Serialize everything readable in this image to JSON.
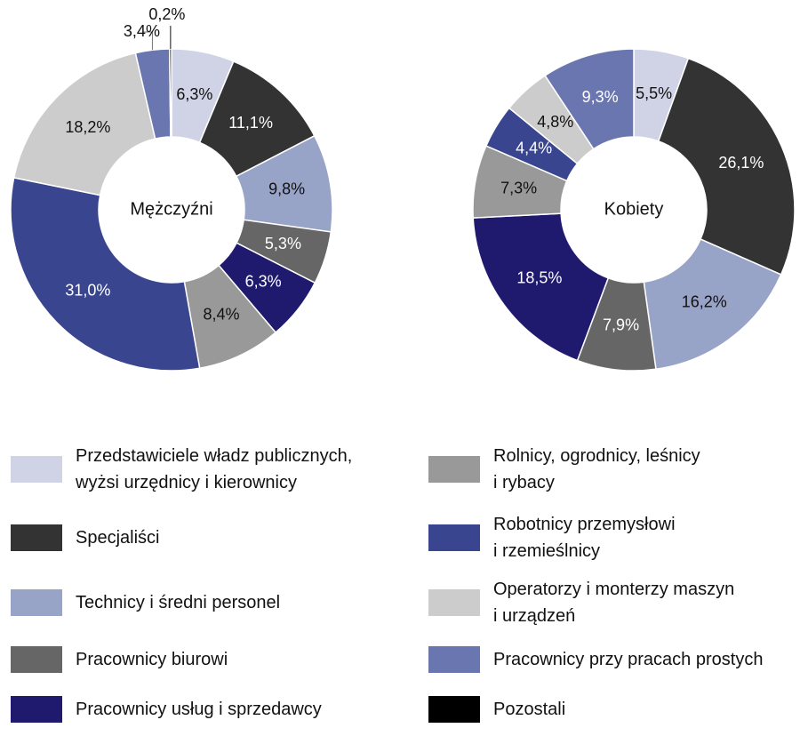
{
  "chart_data": [
    {
      "type": "pie",
      "title": "Mężczyźni",
      "values": [
        6.3,
        11.1,
        9.8,
        5.3,
        6.3,
        8.4,
        31.0,
        18.2,
        3.4,
        0.2
      ],
      "value_labels": [
        "6,3%",
        "11,1%",
        "9,8%",
        "5,3%",
        "6,3%",
        "8,4%",
        "31,0%",
        "18,2%",
        "3,4%",
        "0,2%"
      ]
    },
    {
      "type": "pie",
      "title": "Kobiety",
      "values": [
        5.5,
        26.1,
        16.2,
        7.9,
        18.5,
        7.3,
        4.4,
        4.8,
        9.3,
        null
      ],
      "value_labels": [
        "5,5%",
        "26,1%",
        "16,2%",
        "7,9%",
        "18,5%",
        "7,3%",
        "4,4%",
        "4,8%",
        "9,3%",
        null
      ]
    }
  ],
  "legend": {
    "labels": [
      "Przedstawiciele władz publicznych,\nwyżsi urzędnicy i kierownicy",
      "Specjaliści",
      "Technicy i średni personel",
      "Pracownicy biurowi",
      "Pracownicy usług i sprzedawcy",
      "Rolnicy, ogrodnicy, leśnicy\ni rybacy",
      "Robotnicy przemysłowi\ni rzemieślnicy",
      "Operatorzy i monterzy maszyn\ni urządzeń",
      "Pracownicy przy pracach prostych",
      "Pozostali"
    ],
    "colors": [
      "#d0d3e6",
      "#333333",
      "#98a3c8",
      "#666666",
      "#1f1a6e",
      "#999999",
      "#3a4590",
      "#cccccc",
      "#6a76b0",
      "#000000"
    ]
  }
}
